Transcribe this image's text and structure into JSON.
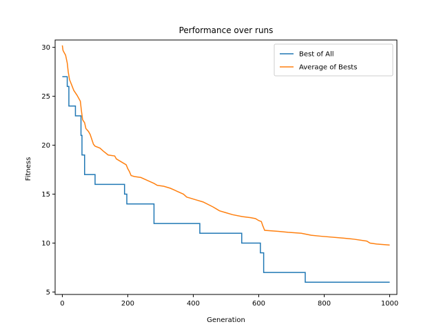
{
  "chart_data": {
    "type": "line",
    "title": "Performance over runs",
    "xlabel": "Generation",
    "ylabel": "Fitness",
    "xlim": [
      -22,
      1022
    ],
    "ylim": [
      4.75,
      30.75
    ],
    "xticks": [
      0,
      200,
      400,
      600,
      800,
      1000
    ],
    "yticks": [
      5,
      10,
      15,
      20,
      25,
      30
    ],
    "legend_position": "top-right",
    "grid": false,
    "series": [
      {
        "name": "Best of All",
        "color": "#1f77b4",
        "step": true,
        "points": [
          [
            0,
            27
          ],
          [
            15,
            27
          ],
          [
            15,
            26
          ],
          [
            20,
            26
          ],
          [
            20,
            24
          ],
          [
            40,
            24
          ],
          [
            40,
            23
          ],
          [
            57,
            23
          ],
          [
            57,
            21
          ],
          [
            60,
            21
          ],
          [
            60,
            19
          ],
          [
            68,
            19
          ],
          [
            68,
            17
          ],
          [
            100,
            17
          ],
          [
            100,
            16
          ],
          [
            190,
            16
          ],
          [
            190,
            15
          ],
          [
            197,
            15
          ],
          [
            197,
            14
          ],
          [
            280,
            14
          ],
          [
            280,
            12
          ],
          [
            420,
            12
          ],
          [
            420,
            11
          ],
          [
            548,
            11
          ],
          [
            548,
            10
          ],
          [
            605,
            10
          ],
          [
            605,
            9
          ],
          [
            615,
            9
          ],
          [
            615,
            7
          ],
          [
            742,
            7
          ],
          [
            742,
            6
          ],
          [
            1000,
            6
          ]
        ]
      },
      {
        "name": "Average of Bests",
        "color": "#ff7f0e",
        "step": false,
        "points": [
          [
            0,
            30.2
          ],
          [
            2,
            29.7
          ],
          [
            5,
            29.5
          ],
          [
            10,
            29.2
          ],
          [
            15,
            28.4
          ],
          [
            18,
            27.5
          ],
          [
            22,
            26.7
          ],
          [
            28,
            26.2
          ],
          [
            35,
            25.6
          ],
          [
            45,
            25.1
          ],
          [
            55,
            24.5
          ],
          [
            58,
            23.6
          ],
          [
            62,
            22.6
          ],
          [
            68,
            22.3
          ],
          [
            72,
            21.7
          ],
          [
            80,
            21.4
          ],
          [
            85,
            21.1
          ],
          [
            90,
            20.6
          ],
          [
            95,
            20.1
          ],
          [
            100,
            19.9
          ],
          [
            115,
            19.7
          ],
          [
            125,
            19.4
          ],
          [
            140,
            19.0
          ],
          [
            160,
            18.9
          ],
          [
            165,
            18.6
          ],
          [
            180,
            18.3
          ],
          [
            195,
            18.0
          ],
          [
            200,
            17.6
          ],
          [
            205,
            17.3
          ],
          [
            210,
            16.9
          ],
          [
            220,
            16.8
          ],
          [
            240,
            16.7
          ],
          [
            260,
            16.4
          ],
          [
            280,
            16.1
          ],
          [
            290,
            15.9
          ],
          [
            310,
            15.8
          ],
          [
            330,
            15.6
          ],
          [
            350,
            15.3
          ],
          [
            370,
            15.0
          ],
          [
            380,
            14.7
          ],
          [
            390,
            14.6
          ],
          [
            410,
            14.4
          ],
          [
            430,
            14.2
          ],
          [
            460,
            13.7
          ],
          [
            470,
            13.5
          ],
          [
            480,
            13.3
          ],
          [
            500,
            13.1
          ],
          [
            520,
            12.9
          ],
          [
            550,
            12.7
          ],
          [
            575,
            12.6
          ],
          [
            590,
            12.5
          ],
          [
            600,
            12.3
          ],
          [
            608,
            12.2
          ],
          [
            612,
            11.8
          ],
          [
            618,
            11.3
          ],
          [
            660,
            11.2
          ],
          [
            690,
            11.1
          ],
          [
            730,
            11.0
          ],
          [
            760,
            10.8
          ],
          [
            790,
            10.7
          ],
          [
            860,
            10.5
          ],
          [
            890,
            10.4
          ],
          [
            930,
            10.2
          ],
          [
            940,
            10.0
          ],
          [
            960,
            9.9
          ],
          [
            1000,
            9.8
          ]
        ]
      }
    ]
  }
}
